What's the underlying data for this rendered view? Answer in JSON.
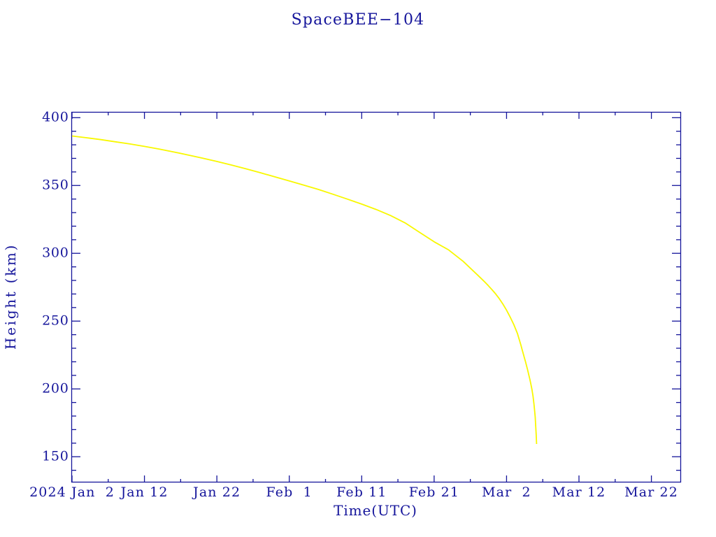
{
  "title": "SpaceBEE−104",
  "colors": {
    "background": "#ffffff",
    "axis_and_text": "#15159b",
    "curve": "#f8f800"
  },
  "chart_data": {
    "type": "line",
    "title": "SpaceBEE−104",
    "xlabel": "Time(UTC)",
    "ylabel": "Height (km)",
    "x_epoch": "2024-01-02 00:00 UTC",
    "x_unit": "days since 2024 Jan 2",
    "y_unit": "km",
    "xlim_days": [
      0,
      84.05
    ],
    "ylim": [
      131.3,
      404.0
    ],
    "grid": false,
    "legend": false,
    "x_major_ticks": [
      {
        "day": 0,
        "label": "2024 Jan  2"
      },
      {
        "day": 10,
        "label": "Jan 12"
      },
      {
        "day": 20,
        "label": "Jan 22"
      },
      {
        "day": 30,
        "label": "Feb  1"
      },
      {
        "day": 40,
        "label": "Feb 11"
      },
      {
        "day": 50,
        "label": "Feb 21"
      },
      {
        "day": 60,
        "label": "Mar  2"
      },
      {
        "day": 70,
        "label": "Mar 12"
      },
      {
        "day": 80,
        "label": "Mar 22"
      }
    ],
    "x_minor_tick_days": [
      5,
      15,
      25,
      35,
      45,
      55,
      65,
      75
    ],
    "y_major_ticks": [
      {
        "value": 150,
        "label": "150"
      },
      {
        "value": 200,
        "label": "200"
      },
      {
        "value": 250,
        "label": "250"
      },
      {
        "value": 300,
        "label": "300"
      },
      {
        "value": 350,
        "label": "350"
      },
      {
        "value": 400,
        "label": "400"
      }
    ],
    "y_minor_tick_values": [
      140,
      160,
      170,
      180,
      190,
      210,
      220,
      230,
      240,
      260,
      270,
      280,
      290,
      310,
      320,
      330,
      340,
      360,
      370,
      380,
      390
    ],
    "series": [
      {
        "name": "SpaceBEE-104 orbital height",
        "points_day_km": [
          [
            0.0,
            386.5
          ],
          [
            2.0,
            385.2
          ],
          [
            4.0,
            383.8
          ],
          [
            6.0,
            382.2
          ],
          [
            8.0,
            380.6
          ],
          [
            10.0,
            378.8
          ],
          [
            12.0,
            376.9
          ],
          [
            14.0,
            374.8
          ],
          [
            16.0,
            372.5
          ],
          [
            18.0,
            370.2
          ],
          [
            20.0,
            367.7
          ],
          [
            22.0,
            365.1
          ],
          [
            24.0,
            362.3
          ],
          [
            26.0,
            359.4
          ],
          [
            28.0,
            356.4
          ],
          [
            30.0,
            353.4
          ],
          [
            32.0,
            350.3
          ],
          [
            34.0,
            347.1
          ],
          [
            36.0,
            343.6
          ],
          [
            38.0,
            340.0
          ],
          [
            40.0,
            336.3
          ],
          [
            42.0,
            332.3
          ],
          [
            44.0,
            327.8
          ],
          [
            46.0,
            322.4
          ],
          [
            48.0,
            315.4
          ],
          [
            50.0,
            308.5
          ],
          [
            52.0,
            302.5
          ],
          [
            54.0,
            294.1
          ],
          [
            56.0,
            284.0
          ],
          [
            56.5,
            281.4
          ],
          [
            57.0,
            278.8
          ],
          [
            57.5,
            276.0
          ],
          [
            58.0,
            273.1
          ],
          [
            58.5,
            270.0
          ],
          [
            59.0,
            266.5
          ],
          [
            59.5,
            262.5
          ],
          [
            60.0,
            258.0
          ],
          [
            60.5,
            253.0
          ],
          [
            61.0,
            247.5
          ],
          [
            61.5,
            240.9
          ],
          [
            62.0,
            231.9
          ],
          [
            62.15,
            229.0
          ],
          [
            62.3,
            226.1
          ],
          [
            62.45,
            223.2
          ],
          [
            62.6,
            220.4
          ],
          [
            62.75,
            217.4
          ],
          [
            62.9,
            214.2
          ],
          [
            63.05,
            210.9
          ],
          [
            63.2,
            207.5
          ],
          [
            63.35,
            203.9
          ],
          [
            63.5,
            199.8
          ],
          [
            63.65,
            194.7
          ],
          [
            63.8,
            188.2
          ],
          [
            63.95,
            179.5
          ],
          [
            64.1,
            165.7
          ],
          [
            64.15,
            159.4
          ]
        ]
      }
    ]
  }
}
